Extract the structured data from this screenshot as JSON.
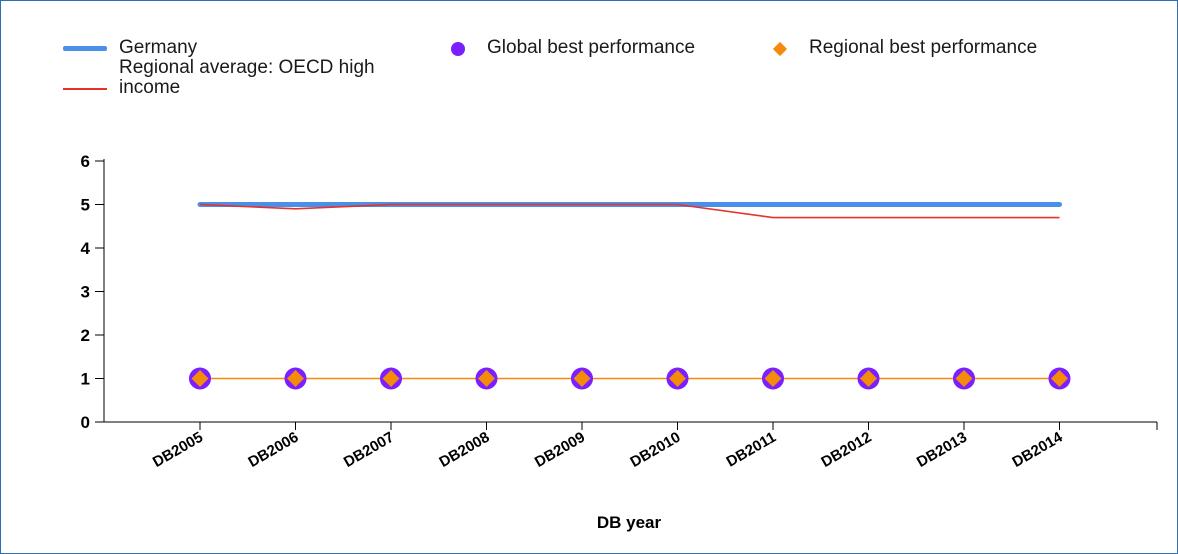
{
  "chart_data": {
    "type": "line",
    "title": "",
    "xlabel": "DB year",
    "ylabel": "",
    "categories": [
      "DB2005",
      "DB2006",
      "DB2007",
      "DB2008",
      "DB2009",
      "DB2010",
      "DB2011",
      "DB2012",
      "DB2013",
      "DB2014"
    ],
    "ylim": [
      0,
      6
    ],
    "yticks": [
      "0",
      "1",
      "2",
      "3",
      "4",
      "5",
      "6"
    ],
    "grid": false,
    "legend_position": "top",
    "series": [
      {
        "name": "Germany",
        "style": "thick-line",
        "color": "#4a90e8",
        "values": [
          5,
          5,
          5,
          5,
          5,
          5,
          5,
          5,
          5,
          5
        ]
      },
      {
        "name": "Regional average: OECD high income",
        "style": "thin-line",
        "color": "#e8312a",
        "values": [
          5,
          4.9,
          5,
          5,
          5,
          5,
          4.7,
          4.7,
          4.7,
          4.7
        ]
      },
      {
        "name": "Global best performance",
        "style": "circle",
        "color": "#7b1fff",
        "values": [
          1,
          1,
          1,
          1,
          1,
          1,
          1,
          1,
          1,
          1
        ]
      },
      {
        "name": "Regional best performance",
        "style": "diamond-line",
        "color": "#f58b0a",
        "values": [
          1,
          1,
          1,
          1,
          1,
          1,
          1,
          1,
          1,
          1
        ]
      }
    ]
  }
}
